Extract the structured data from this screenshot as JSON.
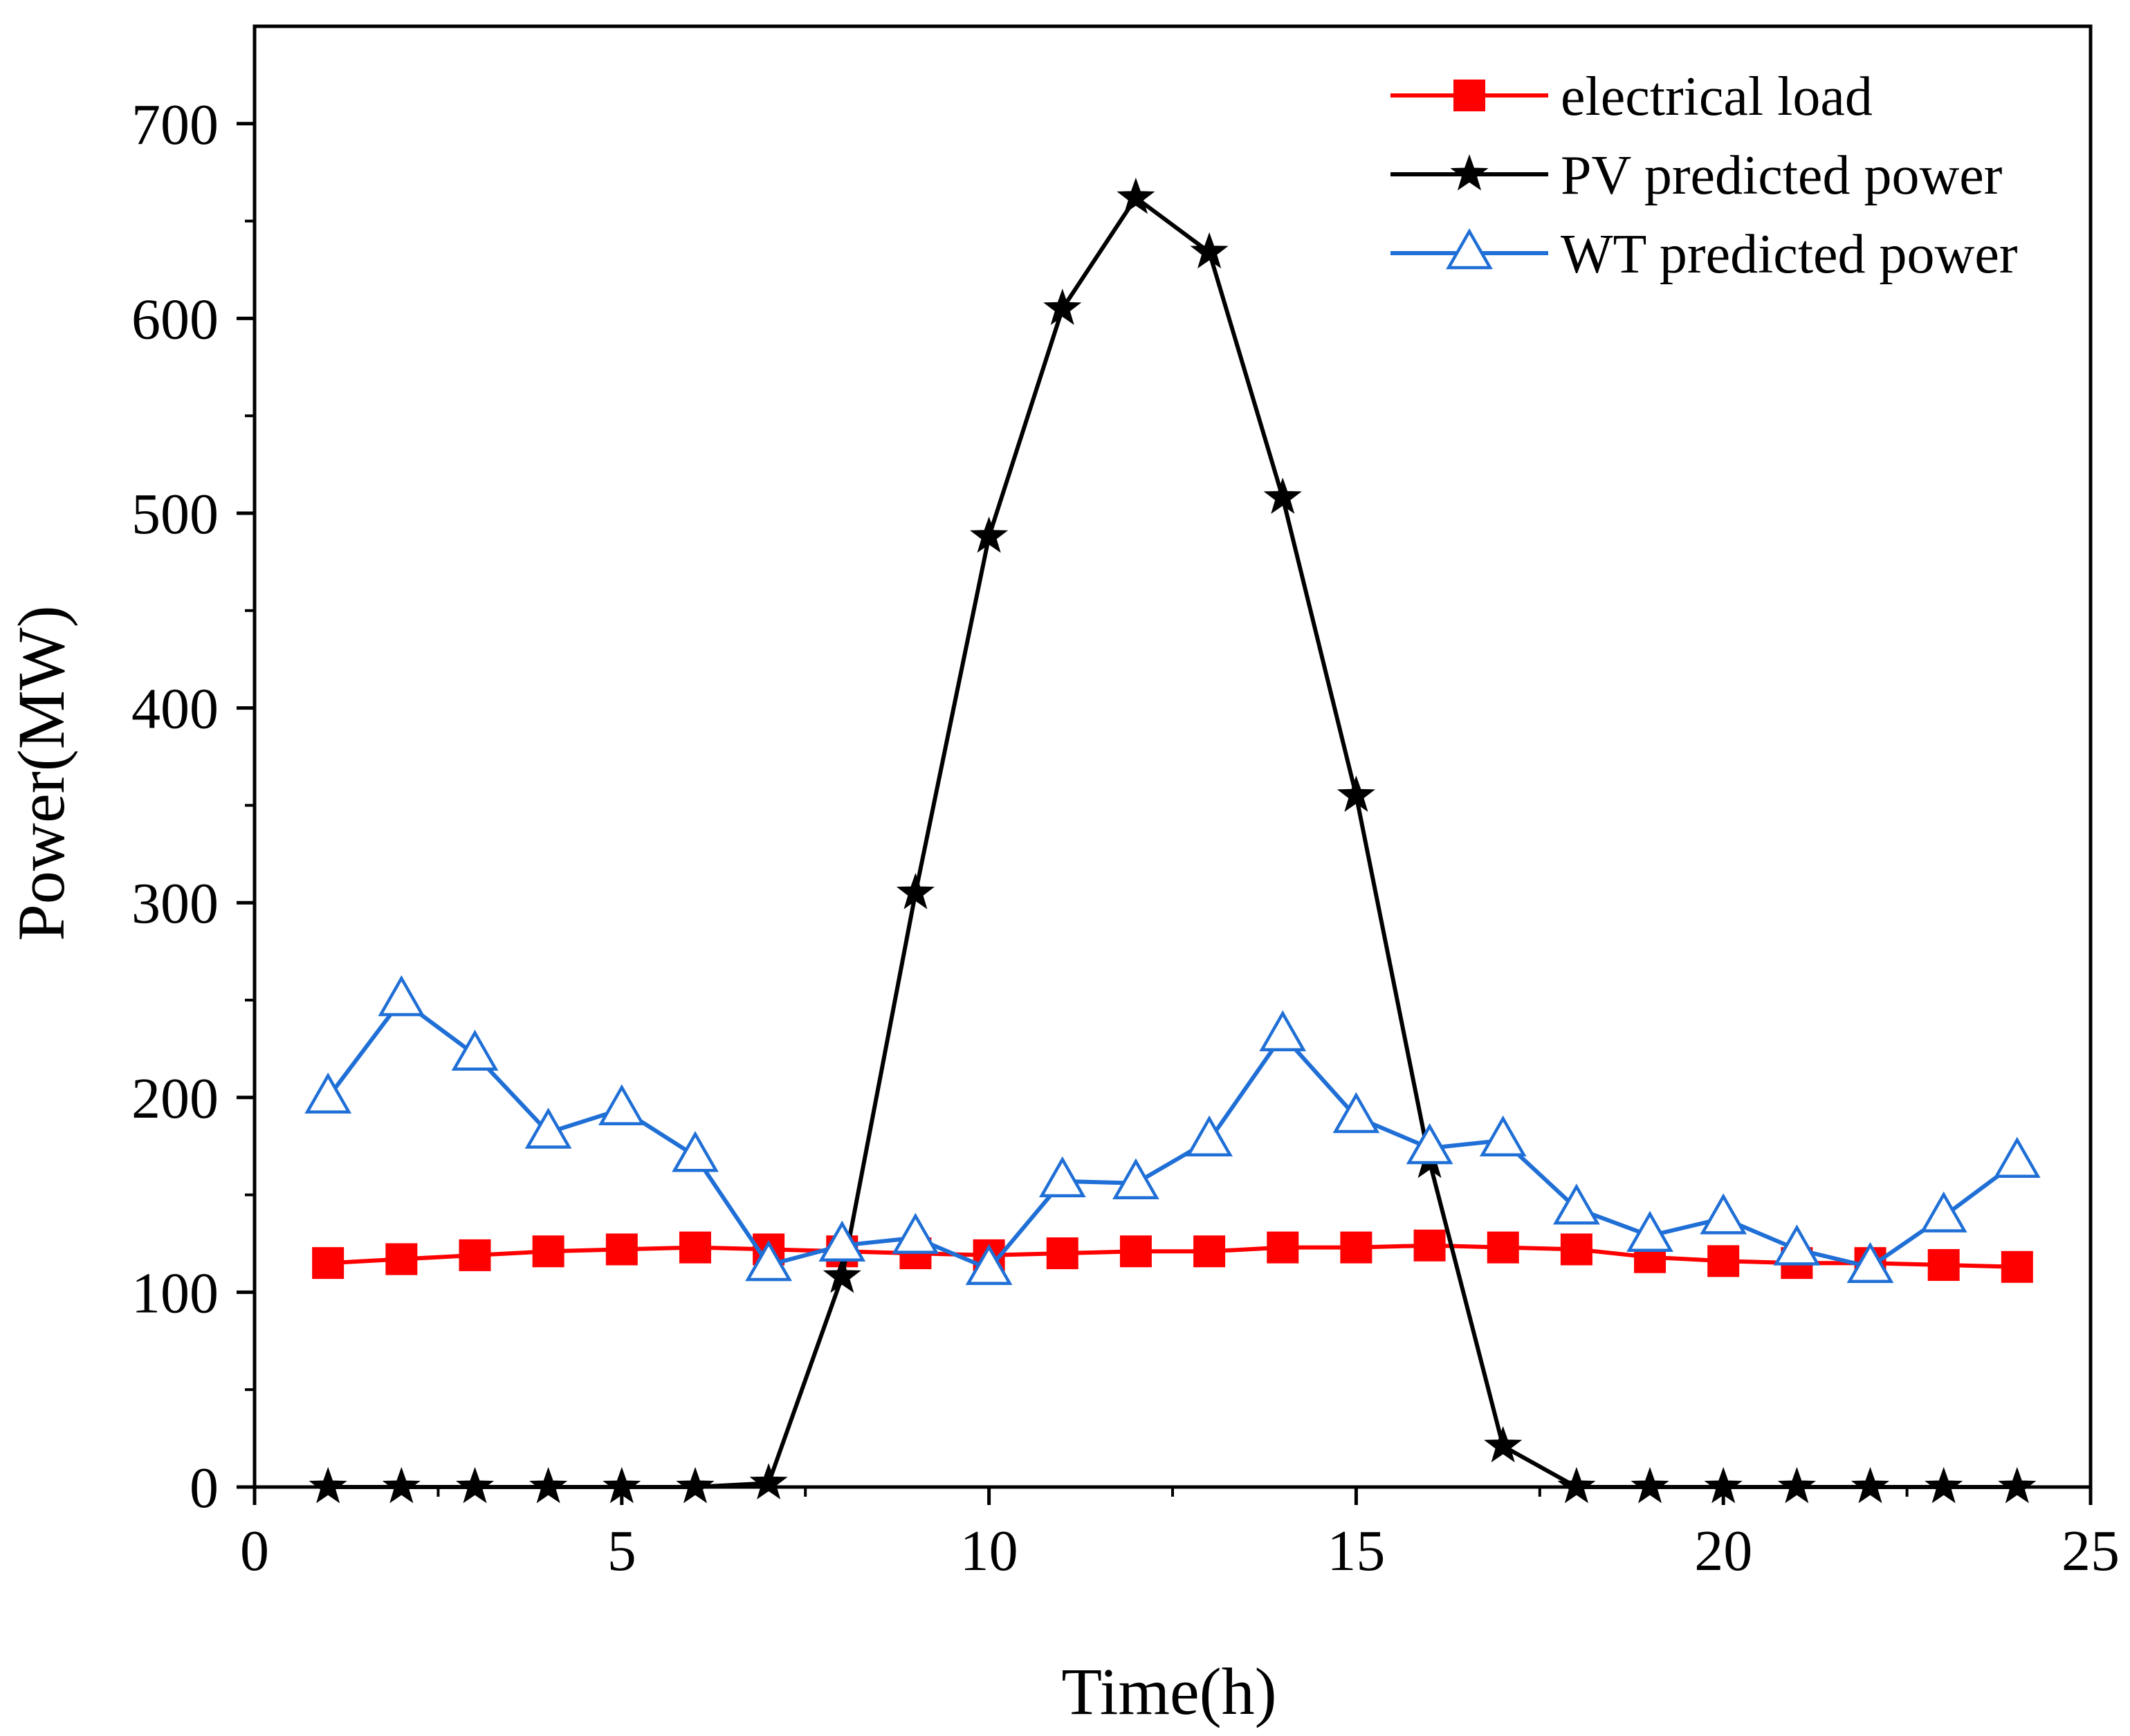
{
  "chart_data": {
    "type": "line",
    "title": "",
    "xlabel": "Time(h)",
    "ylabel": "Power(MW)",
    "xlim": [
      0,
      25
    ],
    "ylim": [
      0,
      750
    ],
    "xticks": [
      0,
      5,
      10,
      15,
      20,
      25
    ],
    "yticks": [
      0,
      100,
      200,
      300,
      400,
      500,
      600,
      700
    ],
    "x_minor_step": 2.5,
    "y_minor_step": 50,
    "grid": false,
    "legend_position": "top-right",
    "x": [
      1,
      2,
      3,
      4,
      5,
      6,
      7,
      8,
      9,
      10,
      11,
      12,
      13,
      14,
      15,
      16,
      17,
      18,
      19,
      20,
      21,
      22,
      23,
      24
    ],
    "series": [
      {
        "name": "electrical load",
        "color": "#ff0000",
        "marker": "square",
        "values": [
          115,
          117,
          119,
          121,
          122,
          123,
          122,
          121,
          120,
          119,
          120,
          121,
          121,
          123,
          123,
          124,
          123,
          122,
          118,
          116,
          115,
          115,
          114,
          113
        ]
      },
      {
        "name": "PV predicted power",
        "color": "#000000",
        "marker": "star",
        "values": [
          0,
          0,
          0,
          0,
          0,
          0,
          2,
          108,
          305,
          488,
          605,
          662,
          634,
          508,
          355,
          167,
          21,
          0,
          0,
          0,
          0,
          0,
          0,
          0
        ]
      },
      {
        "name": "WT predicted power",
        "color": "#1f6fd6",
        "marker": "triangle-open",
        "values": [
          200,
          250,
          222,
          182,
          194,
          170,
          114,
          124,
          128,
          112,
          157,
          156,
          178,
          232,
          190,
          174,
          178,
          143,
          129,
          138,
          122,
          113,
          139,
          167
        ]
      }
    ]
  }
}
